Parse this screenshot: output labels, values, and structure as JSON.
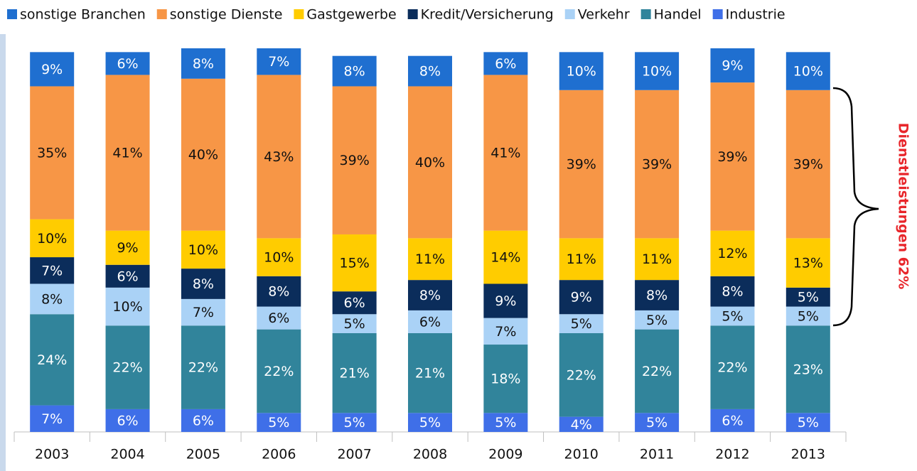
{
  "chart_data": {
    "type": "stacked_bar",
    "categories": [
      "2003",
      "2004",
      "2005",
      "2006",
      "2007",
      "2008",
      "2009",
      "2010",
      "2011",
      "2012",
      "2013"
    ],
    "series": [
      {
        "name": "sonstige Branchen",
        "color": "#1f6fd0",
        "values": [
          9,
          6,
          8,
          7,
          8,
          8,
          6,
          10,
          10,
          9,
          10
        ],
        "value_labels": [
          "9%",
          "6%",
          "8%",
          "7%",
          "8%",
          "8%",
          "6%",
          "10%",
          "10%",
          "9%",
          "10%"
        ]
      },
      {
        "name": "sonstige Dienste",
        "color": "#f79646",
        "values": [
          35,
          41,
          40,
          43,
          39,
          40,
          41,
          39,
          39,
          39,
          39
        ],
        "value_labels": [
          "35%",
          "41%",
          "40%",
          "43%",
          "39%",
          "40%",
          "41%",
          "39%",
          "39%",
          "39%",
          "39%"
        ]
      },
      {
        "name": "Gastgewerbe",
        "color": "#ffcc00",
        "values": [
          10,
          9,
          10,
          10,
          15,
          11,
          14,
          11,
          11,
          12,
          13
        ],
        "value_labels": [
          "10%",
          "9%",
          "10%",
          "10%",
          "15%",
          "11%",
          "14%",
          "11%",
          "11%",
          "12%",
          "13%"
        ]
      },
      {
        "name": "Kredit/Versicherung",
        "color": "#0b2d5b",
        "values": [
          7,
          6,
          8,
          8,
          6,
          8,
          9,
          9,
          8,
          8,
          5
        ],
        "value_labels": [
          "7%",
          "6%",
          "8%",
          "8%",
          "6%",
          "8%",
          "9%",
          "9%",
          "8%",
          "8%",
          "5%"
        ]
      },
      {
        "name": "Verkehr",
        "color": "#aad2f6",
        "values": [
          8,
          10,
          7,
          6,
          5,
          6,
          7,
          5,
          5,
          5,
          5
        ],
        "value_labels": [
          "8%",
          "10%",
          "7%",
          "6%",
          "5%",
          "6%",
          "7%",
          "5%",
          "5%",
          "5%",
          "5%"
        ]
      },
      {
        "name": "Handel",
        "color": "#31849b",
        "values": [
          24,
          22,
          22,
          22,
          21,
          21,
          18,
          22,
          22,
          22,
          23
        ],
        "value_labels": [
          "24%",
          "22%",
          "22%",
          "22%",
          "21%",
          "21%",
          "18%",
          "22%",
          "22%",
          "22%",
          "23%"
        ]
      },
      {
        "name": "Industrie",
        "color": "#3f6fe8",
        "values": [
          7,
          6,
          6,
          5,
          5,
          5,
          5,
          4,
          5,
          6,
          5
        ],
        "value_labels": [
          "7%",
          "6%",
          "6%",
          "5%",
          "5%",
          "5%",
          "5%",
          "4%",
          "5%",
          "6%",
          "5%"
        ]
      }
    ],
    "annotation": "Dienstleistungen 62%"
  }
}
